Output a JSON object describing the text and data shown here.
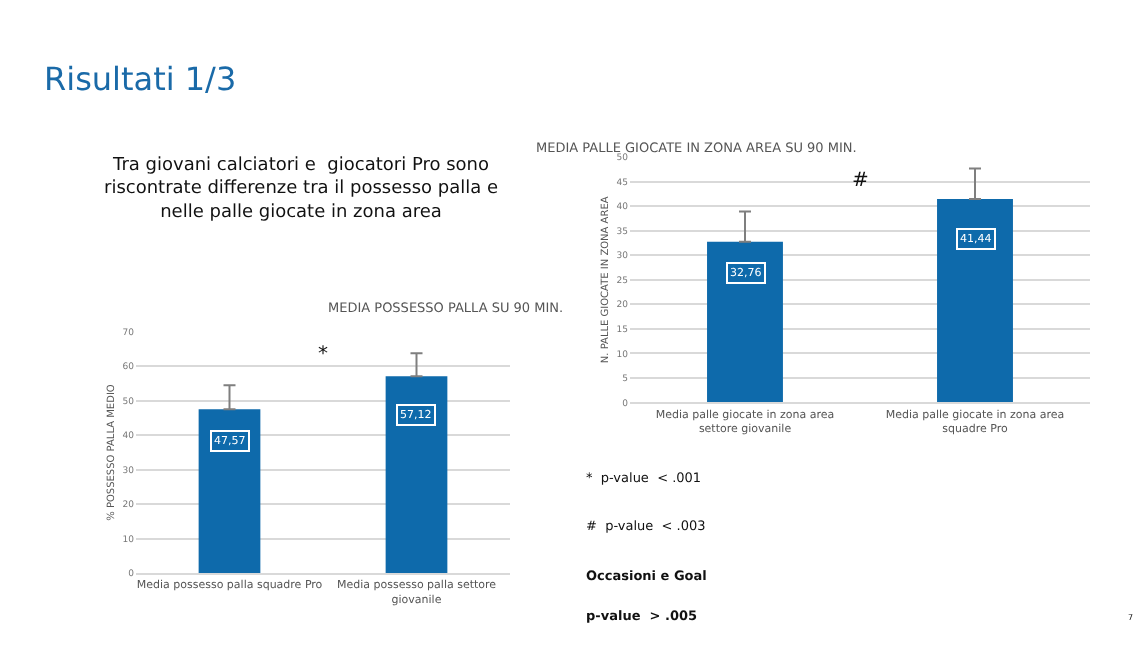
{
  "chart_data": [
    {
      "type": "other",
      "title": "Risultati 1/3",
      "annotations": [
        "Tra giovani calciatori e  giocatori Pro sono riscontrate differenze tra il possesso palla e  nelle palle giocate in zona area",
        "*  p-value  < .001",
        "#  p-value  < .003",
        "Occasioni e Goal",
        "p-value  > .005",
        "7"
      ]
    },
    {
      "type": "bar",
      "title": "MEDIA POSSESSO PALLA SU 90 MIN.",
      "ylabel": "% POSSESSO PALLA MEDIO",
      "categories": [
        "Media possesso palla squadre Pro",
        "Media possesso palla settore giovanile"
      ],
      "values": [
        47.57,
        57.12
      ],
      "color": "#0e6aab",
      "errors": [
        [
          47.57,
          54.5
        ],
        [
          57.12,
          63.8
        ]
      ],
      "value_labels": [
        "47,57",
        "57,12"
      ],
      "ylim": [
        0,
        70
      ],
      "yticks": [
        0,
        10,
        20,
        30,
        40,
        50,
        60,
        70
      ],
      "grid": "y",
      "annotations": [
        "*"
      ]
    },
    {
      "type": "bar",
      "title": "MEDIA PALLE GIOCATE IN ZONA AREA SU 90 MIN.",
      "ylabel": "N. PALLE GIOCATE IN ZONA AREA",
      "categories": [
        "Media palle giocate in zona area settore giovanile",
        "Media palle giocate in zona area squadre Pro"
      ],
      "values": [
        32.76,
        41.44
      ],
      "color": "#0e6aab",
      "errors": [
        [
          32.76,
          38.9
        ],
        [
          41.44,
          47.7
        ]
      ],
      "value_labels": [
        "32,76",
        "41,44"
      ],
      "ylim": [
        0,
        50
      ],
      "yticks": [
        0,
        5,
        10,
        15,
        20,
        25,
        30,
        35,
        40,
        45,
        50
      ],
      "grid": "y",
      "annotations": [
        "#"
      ]
    }
  ]
}
